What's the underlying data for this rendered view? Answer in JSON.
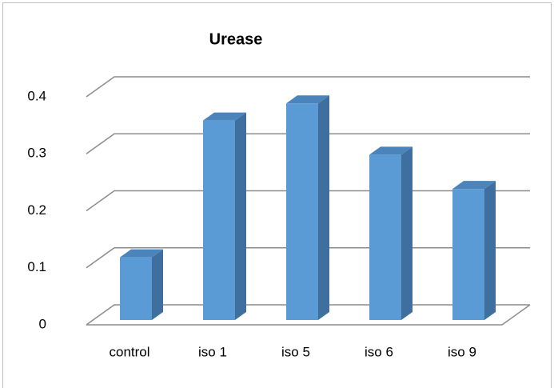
{
  "chart_data": {
    "type": "bar",
    "title": "Urease",
    "categories": [
      "control",
      "iso 1",
      "iso 5",
      "iso 6",
      "iso 9"
    ],
    "values": [
      0.11,
      0.35,
      0.38,
      0.29,
      0.23
    ],
    "color": "#5b9bd5",
    "side_color": "#3f6f9f",
    "top_color": "#4a84bb",
    "ylim": [
      0,
      0.4
    ],
    "yticks": [
      0,
      0.1,
      0.2,
      0.3,
      0.4
    ],
    "grid": true
  }
}
